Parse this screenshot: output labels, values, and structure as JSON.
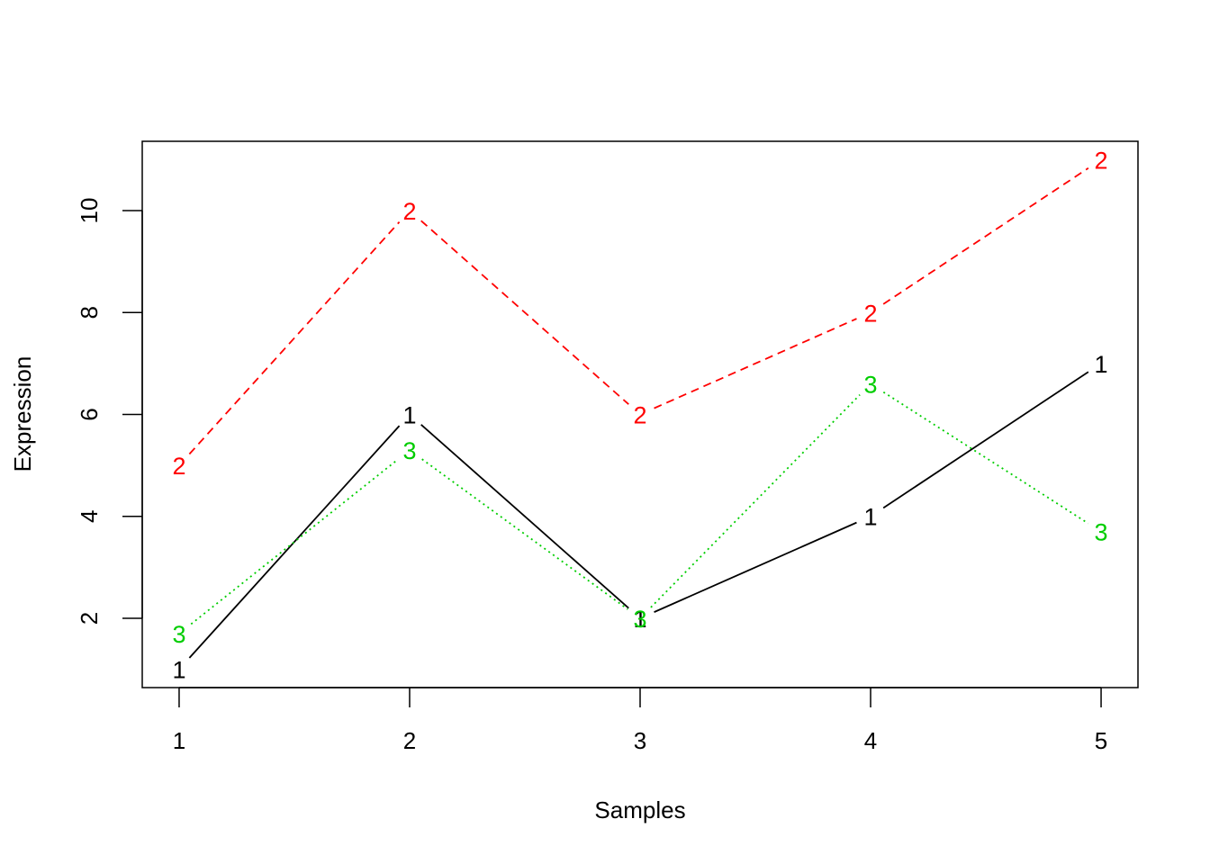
{
  "chart_data": {
    "type": "line",
    "title": "",
    "xlabel": "Samples",
    "ylabel": "Expression",
    "x": [
      1,
      2,
      3,
      4,
      5
    ],
    "xticks": [
      "1",
      "2",
      "3",
      "4",
      "5"
    ],
    "yticks": [
      "2",
      "4",
      "6",
      "8",
      "10"
    ],
    "xlim": [
      0.84,
      5.16
    ],
    "ylim": [
      0.64,
      11.36
    ],
    "grid": false,
    "series": [
      {
        "marker": "1",
        "color": "#000000",
        "line_style": "solid",
        "values": [
          1,
          6,
          2,
          4,
          7
        ]
      },
      {
        "marker": "2",
        "color": "#ff0000",
        "line_style": "dashed",
        "values": [
          5,
          10,
          6,
          8,
          11
        ]
      },
      {
        "marker": "3",
        "color": "#00cd00",
        "line_style": "dotted",
        "values": [
          1.7,
          5.3,
          2,
          6.6,
          3.7
        ]
      }
    ]
  }
}
